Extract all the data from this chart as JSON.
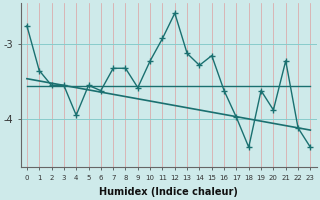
{
  "xlabel": "Humidex (Indice chaleur)",
  "bg_color": "#ceeaea",
  "line_color": "#1a7070",
  "grid_color_v": "#dda0a0",
  "grid_color_h": "#88cccc",
  "x_main": [
    0,
    1,
    2,
    3,
    4,
    5,
    6,
    7,
    8,
    9,
    10,
    11,
    12,
    13,
    14,
    15,
    16,
    17,
    18,
    19,
    20,
    21,
    22,
    23
  ],
  "y_main": [
    -2.75,
    -3.35,
    -3.55,
    -3.55,
    -3.95,
    -3.55,
    -3.62,
    -3.32,
    -3.32,
    -3.58,
    -3.22,
    -2.92,
    -2.58,
    -3.12,
    -3.28,
    -3.15,
    -3.62,
    -3.98,
    -4.38,
    -3.62,
    -3.88,
    -3.22,
    -4.12,
    -4.38
  ],
  "y_trend": [
    -3.46,
    -3.49,
    -3.52,
    -3.55,
    -3.58,
    -3.61,
    -3.64,
    -3.67,
    -3.7,
    -3.73,
    -3.76,
    -3.79,
    -3.82,
    -3.85,
    -3.88,
    -3.91,
    -3.94,
    -3.97,
    -4.0,
    -4.03,
    -4.06,
    -4.09,
    -4.12,
    -4.15
  ],
  "y_flat": [
    -3.56,
    -3.56,
    -3.56,
    -3.56,
    -3.56,
    -3.56,
    -3.56,
    -3.56,
    -3.56,
    -3.56,
    -3.56,
    -3.56,
    -3.56,
    -3.56,
    -3.56,
    -3.56,
    -3.56,
    -3.56,
    -3.56,
    -3.56,
    -3.56,
    -3.56,
    -3.56,
    -3.56
  ],
  "ylim": [
    -4.65,
    -2.45
  ],
  "xlim": [
    -0.5,
    23.5
  ],
  "yticks": [
    -4,
    -3
  ],
  "xticks": [
    0,
    1,
    2,
    3,
    4,
    5,
    6,
    7,
    8,
    9,
    10,
    11,
    12,
    13,
    14,
    15,
    16,
    17,
    18,
    19,
    20,
    21,
    22,
    23
  ],
  "figsize": [
    3.2,
    2.0
  ],
  "dpi": 100
}
